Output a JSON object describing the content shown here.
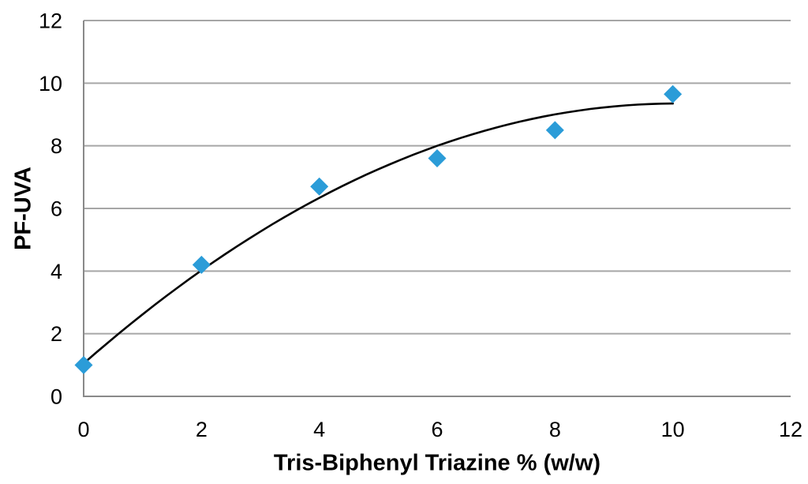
{
  "chart_data": {
    "type": "scatter",
    "title": "",
    "xlabel": "Tris-Biphenyl Triazine % (w/w)",
    "ylabel": "PF-UVA",
    "x": [
      0,
      2,
      4,
      6,
      8,
      10
    ],
    "y": [
      1.0,
      4.2,
      6.7,
      7.6,
      8.5,
      9.65
    ],
    "xlim": [
      0,
      12
    ],
    "ylim": [
      0,
      12
    ],
    "xticks": [
      0,
      2,
      4,
      6,
      8,
      10,
      12
    ],
    "yticks": [
      0,
      2,
      4,
      6,
      8,
      10,
      12
    ],
    "grid": "horizontal-only",
    "legend": "none",
    "gridline_color": "#A6A6A6",
    "axis_line_color": "#898989",
    "tick_label_color": "#000000",
    "marker": {
      "shape": "diamond",
      "color": "#2B9CD8",
      "size": 23
    },
    "trendline": {
      "kind": "polynomial",
      "order": 2,
      "coefficients": {
        "a0": 1.05,
        "a1": 1.65,
        "a2": -0.082
      },
      "color": "#000000",
      "width": 2.6,
      "x_range": [
        0,
        10
      ]
    }
  }
}
